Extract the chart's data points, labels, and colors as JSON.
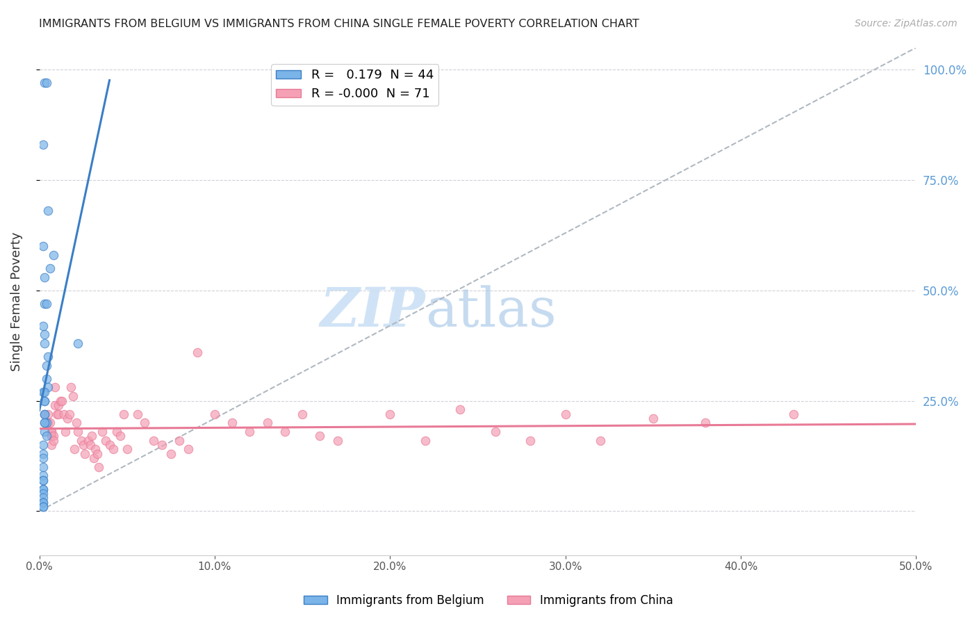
{
  "title": "IMMIGRANTS FROM BELGIUM VS IMMIGRANTS FROM CHINA SINGLE FEMALE POVERTY CORRELATION CHART",
  "source": "Source: ZipAtlas.com",
  "ylabel": "Single Female Poverty",
  "right_yticks": [
    0.0,
    0.25,
    0.5,
    0.75,
    1.0
  ],
  "right_yticklabels": [
    "",
    "25.0%",
    "50.0%",
    "75.0%",
    "100.0%"
  ],
  "xmin": 0.0,
  "xmax": 0.5,
  "ymin": -0.1,
  "ymax": 1.05,
  "legend_belgium_R": "0.179",
  "legend_belgium_N": "44",
  "legend_china_R": "-0.000",
  "legend_china_N": "71",
  "belgium_color": "#7ab4e8",
  "china_color": "#f5a0b5",
  "belgium_line_color": "#3a7ec6",
  "china_line_color": "#e87a96",
  "ref_line_color": "#b0b8c0",
  "watermark_zip": "ZIP",
  "watermark_atlas": "atlas",
  "belgium_x": [
    0.003,
    0.004,
    0.002,
    0.005,
    0.002,
    0.008,
    0.006,
    0.003,
    0.003,
    0.004,
    0.002,
    0.003,
    0.003,
    0.005,
    0.004,
    0.004,
    0.005,
    0.002,
    0.003,
    0.003,
    0.003,
    0.003,
    0.003,
    0.004,
    0.003,
    0.003,
    0.003,
    0.004,
    0.022,
    0.002,
    0.002,
    0.002,
    0.002,
    0.002,
    0.002,
    0.002,
    0.002,
    0.002,
    0.002,
    0.002,
    0.002,
    0.002,
    0.002,
    0.002
  ],
  "belgium_y": [
    0.97,
    0.97,
    0.83,
    0.68,
    0.6,
    0.58,
    0.55,
    0.53,
    0.47,
    0.47,
    0.42,
    0.4,
    0.38,
    0.35,
    0.33,
    0.3,
    0.28,
    0.27,
    0.27,
    0.25,
    0.25,
    0.22,
    0.22,
    0.2,
    0.2,
    0.2,
    0.18,
    0.17,
    0.38,
    0.15,
    0.13,
    0.12,
    0.1,
    0.08,
    0.07,
    0.07,
    0.05,
    0.05,
    0.04,
    0.03,
    0.02,
    0.02,
    0.01,
    0.01
  ],
  "china_x": [
    0.003,
    0.005,
    0.005,
    0.006,
    0.007,
    0.007,
    0.007,
    0.007,
    0.007,
    0.008,
    0.008,
    0.009,
    0.009,
    0.01,
    0.011,
    0.011,
    0.012,
    0.013,
    0.014,
    0.015,
    0.016,
    0.017,
    0.018,
    0.019,
    0.02,
    0.021,
    0.022,
    0.024,
    0.025,
    0.026,
    0.028,
    0.029,
    0.03,
    0.031,
    0.032,
    0.033,
    0.034,
    0.036,
    0.038,
    0.04,
    0.042,
    0.044,
    0.046,
    0.048,
    0.05,
    0.056,
    0.06,
    0.065,
    0.07,
    0.075,
    0.08,
    0.085,
    0.09,
    0.1,
    0.11,
    0.12,
    0.13,
    0.14,
    0.15,
    0.16,
    0.17,
    0.2,
    0.22,
    0.24,
    0.26,
    0.28,
    0.3,
    0.32,
    0.35,
    0.38,
    0.43
  ],
  "china_y": [
    0.22,
    0.22,
    0.2,
    0.2,
    0.18,
    0.17,
    0.17,
    0.15,
    0.18,
    0.17,
    0.16,
    0.24,
    0.28,
    0.22,
    0.24,
    0.22,
    0.25,
    0.25,
    0.22,
    0.18,
    0.21,
    0.22,
    0.28,
    0.26,
    0.14,
    0.2,
    0.18,
    0.16,
    0.15,
    0.13,
    0.16,
    0.15,
    0.17,
    0.12,
    0.14,
    0.13,
    0.1,
    0.18,
    0.16,
    0.15,
    0.14,
    0.18,
    0.17,
    0.22,
    0.14,
    0.22,
    0.2,
    0.16,
    0.15,
    0.13,
    0.16,
    0.14,
    0.36,
    0.22,
    0.2,
    0.18,
    0.2,
    0.18,
    0.22,
    0.17,
    0.16,
    0.22,
    0.16,
    0.23,
    0.18,
    0.16,
    0.22,
    0.16,
    0.21,
    0.2,
    0.22
  ],
  "grid_color": "#d0d0d8",
  "grid_yticks": [
    0.0,
    0.25,
    0.5,
    0.75,
    1.0
  ],
  "xticks": [
    0.0,
    0.1,
    0.2,
    0.3,
    0.4,
    0.5
  ],
  "xticklabels": [
    "0.0%",
    "10.0%",
    "20.0%",
    "30.0%",
    "40.0%",
    "50.0%"
  ],
  "legend_labels_bottom": [
    "Immigrants from Belgium",
    "Immigrants from China"
  ]
}
